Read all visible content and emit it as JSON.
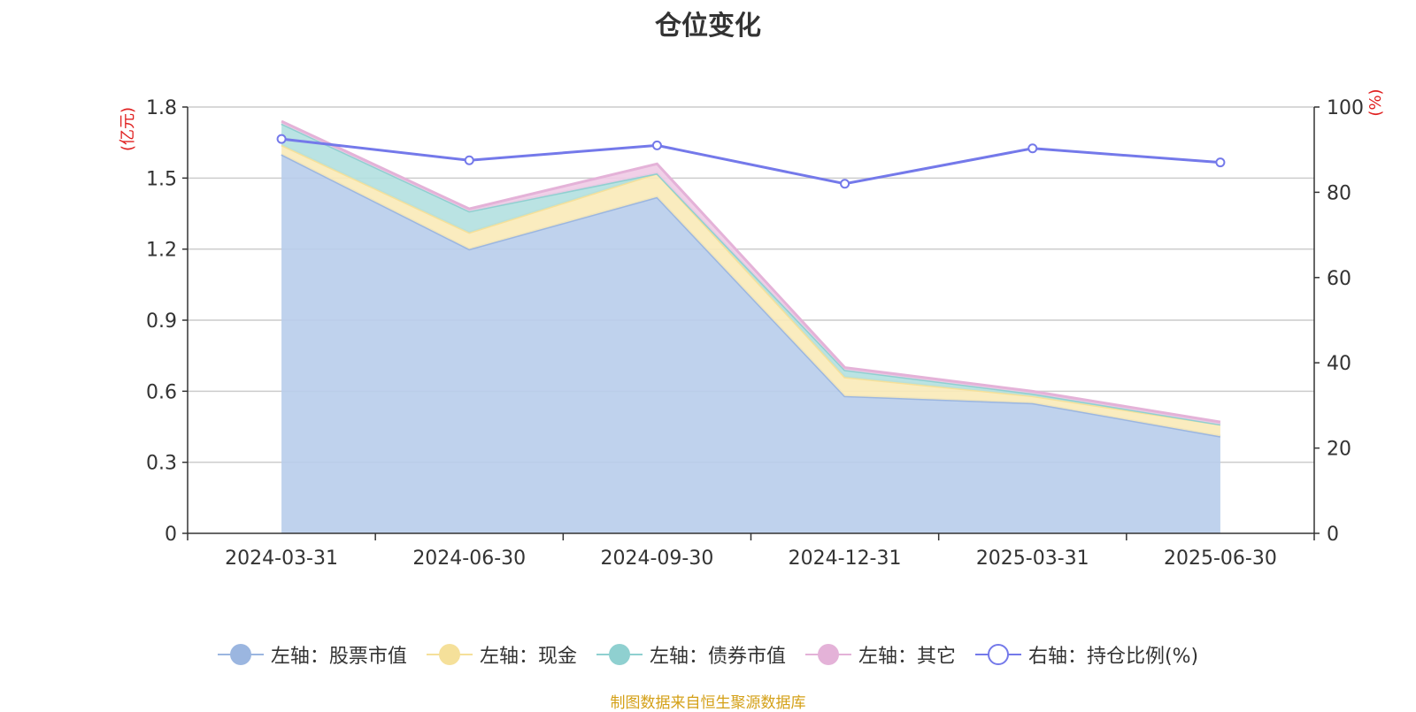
{
  "title": "仓位变化",
  "footer": "制图数据来自恒生聚源数据库",
  "chart_data": {
    "type": "area",
    "categories": [
      "2024-03-31",
      "2024-06-30",
      "2024-09-30",
      "2024-12-31",
      "2025-03-31",
      "2025-06-30"
    ],
    "left_axis": {
      "label": "(亿元)",
      "ylim": [
        0,
        1.8
      ],
      "ticks": [
        "0",
        "0.3",
        "0.6",
        "0.9",
        "1.2",
        "1.5",
        "1.8"
      ]
    },
    "right_axis": {
      "label": "(%)",
      "ylim": [
        0,
        100
      ],
      "ticks": [
        "0",
        "20",
        "40",
        "60",
        "80",
        "100"
      ]
    },
    "stacked": true,
    "series": [
      {
        "name": "左轴：股票市值",
        "axis": "left",
        "color": "#9bb6e0",
        "fill": "#b8cdeb",
        "values": [
          1.6,
          1.2,
          1.42,
          0.58,
          0.55,
          0.41
        ]
      },
      {
        "name": "左轴：现金",
        "axis": "left",
        "color": "#f5e09a",
        "fill": "#f9eab8",
        "values": [
          0.04,
          0.07,
          0.1,
          0.08,
          0.03,
          0.05
        ]
      },
      {
        "name": "左轴：债券市值",
        "axis": "left",
        "color": "#8fd0d0",
        "fill": "#b2e0e0",
        "values": [
          0.09,
          0.09,
          0.0,
          0.03,
          0.01,
          0.0
        ]
      },
      {
        "name": "左轴：其它",
        "axis": "left",
        "color": "#e4b2d8",
        "fill": "#efcbe6",
        "values": [
          0.01,
          0.01,
          0.04,
          0.01,
          0.01,
          0.01
        ]
      },
      {
        "name": "右轴：持仓比例(%)",
        "axis": "right",
        "type": "line",
        "color": "#7479ea",
        "values": [
          92.5,
          87.5,
          91.0,
          82.0,
          90.3,
          87.0
        ]
      }
    ],
    "grid": true,
    "legend_position": "bottom"
  }
}
